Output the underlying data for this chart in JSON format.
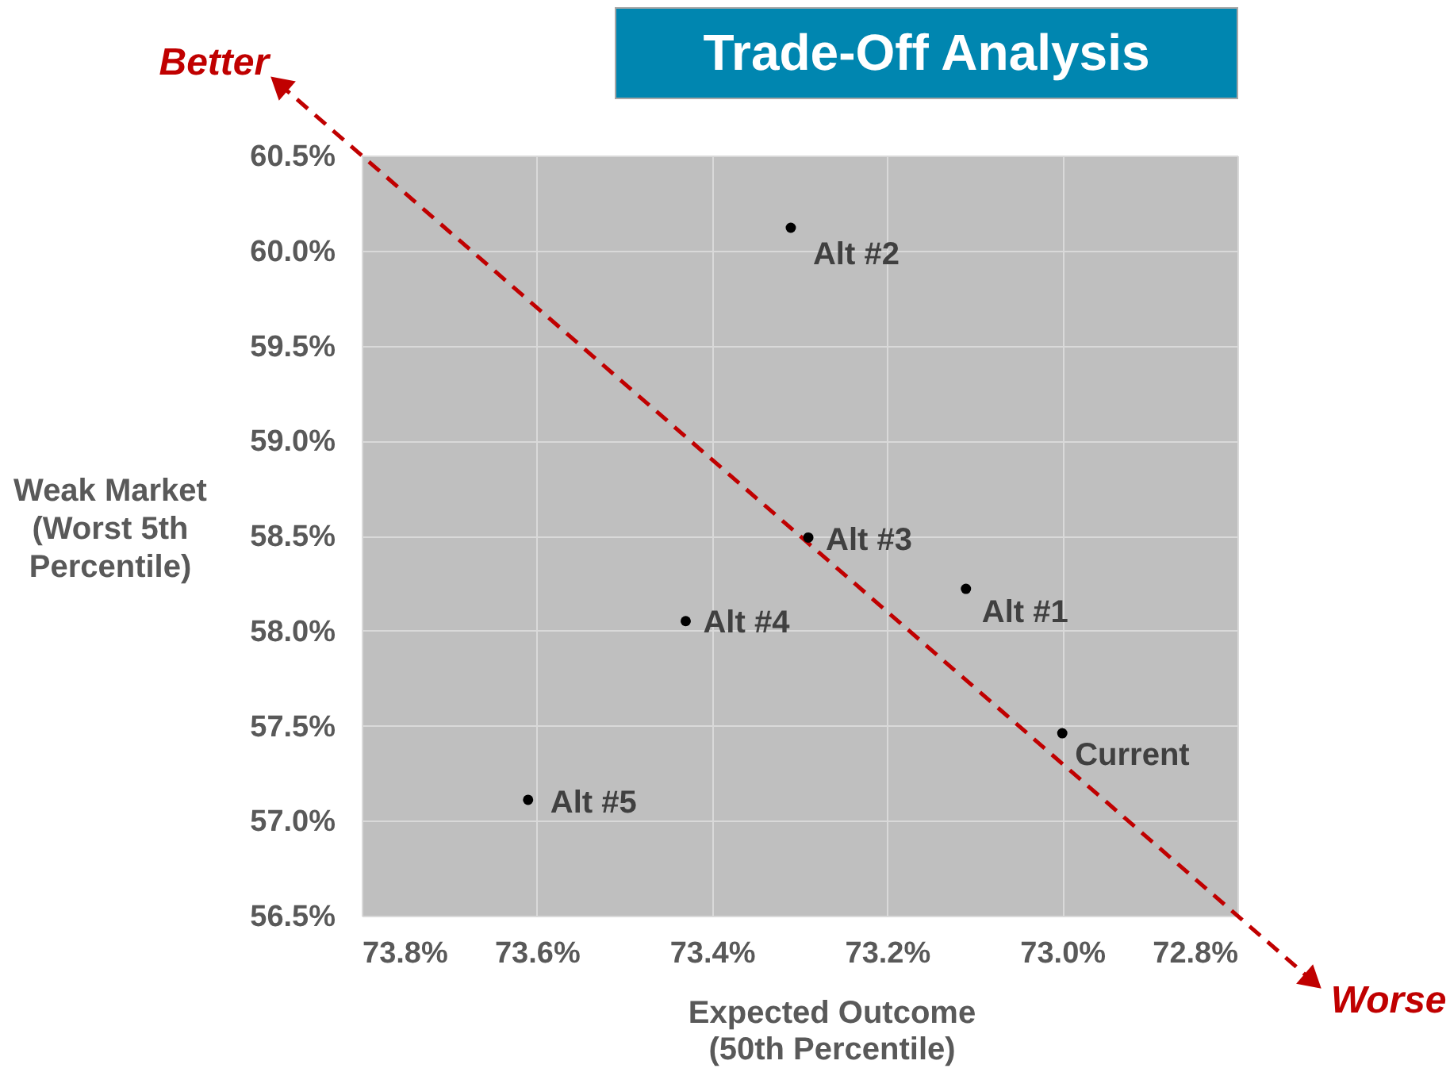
{
  "chart_data": {
    "type": "scatter",
    "title": "Trade-Off Analysis",
    "xlabel": "Expected Outcome\n(50th Percentile)",
    "ylabel": "Weak Market\n(Worst 5th\nPercentile)",
    "xlim": [
      73.8,
      72.8
    ],
    "xticks": [
      {
        "value": 73.8,
        "label": "73.8%"
      },
      {
        "value": 73.6,
        "label": "73.6%"
      },
      {
        "value": 73.4,
        "label": "73.4%"
      },
      {
        "value": 73.2,
        "label": "73.2%"
      },
      {
        "value": 73.0,
        "label": "73.0%"
      },
      {
        "value": 72.8,
        "label": "72.8%"
      }
    ],
    "ylim": [
      56.5,
      60.5
    ],
    "yticks": [
      {
        "value": 56.5,
        "label": "56.5%"
      },
      {
        "value": 57.0,
        "label": "57.0%"
      },
      {
        "value": 57.5,
        "label": "57.5%"
      },
      {
        "value": 58.0,
        "label": "58.0%"
      },
      {
        "value": 58.5,
        "label": "58.5%"
      },
      {
        "value": 59.0,
        "label": "59.0%"
      },
      {
        "value": 59.5,
        "label": "59.5%"
      },
      {
        "value": 60.0,
        "label": "60.0%"
      },
      {
        "value": 60.5,
        "label": "60.5%"
      }
    ],
    "grid": true,
    "marker": "circle",
    "series": [
      {
        "name": "Current",
        "color": "#000000",
        "x": [
          73.0
        ],
        "values": [
          57.46
        ]
      },
      {
        "name": "Alt #1",
        "color": "#000000",
        "x": [
          73.11
        ],
        "values": [
          58.22
        ]
      },
      {
        "name": "Alt #2",
        "color": "#000000",
        "x": [
          73.31
        ],
        "values": [
          60.12
        ]
      },
      {
        "name": "Alt #3",
        "color": "#000000",
        "x": [
          73.29
        ],
        "values": [
          58.49
        ]
      },
      {
        "name": "Alt #4",
        "color": "#000000",
        "x": [
          73.43
        ],
        "values": [
          58.05
        ]
      },
      {
        "name": "Alt #5",
        "color": "#000000",
        "x": [
          73.61
        ],
        "values": [
          57.11
        ]
      }
    ],
    "annotations": [
      "Better",
      "Worse"
    ]
  }
}
